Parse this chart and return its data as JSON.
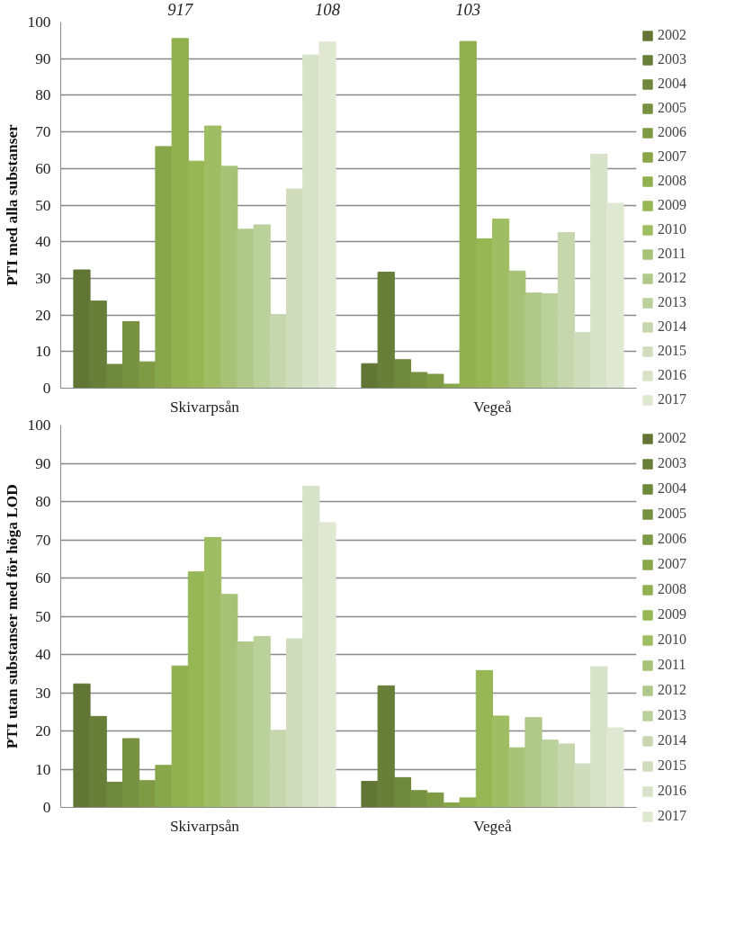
{
  "chart_data": [
    {
      "type": "bar",
      "ylabel": "PTI med alla substanser",
      "categories": [
        "Skivarpsån",
        "Vegeå"
      ],
      "ylim": [
        0,
        100
      ],
      "yticks": [
        0,
        10,
        20,
        30,
        40,
        50,
        60,
        70,
        80,
        90,
        100
      ],
      "grid": "y",
      "legend": "right",
      "annotations": [
        "917",
        "108",
        "103"
      ],
      "series": [
        {
          "name": "2002",
          "color": "#617534",
          "values": [
            32.3,
            6.7
          ]
        },
        {
          "name": "2003",
          "color": "#677f38",
          "values": [
            23.8,
            31.7
          ]
        },
        {
          "name": "2004",
          "color": "#6e883c",
          "values": [
            6.5,
            7.8
          ]
        },
        {
          "name": "2005",
          "color": "#76913f",
          "values": [
            18.2,
            4.3
          ]
        },
        {
          "name": "2006",
          "color": "#7e9a44",
          "values": [
            7.2,
            3.8
          ]
        },
        {
          "name": "2007",
          "color": "#88a64a",
          "values": [
            66,
            1.1
          ]
        },
        {
          "name": "2008",
          "color": "#91b04f",
          "values": [
            95.5,
            94.7
          ]
        },
        {
          "name": "2009",
          "color": "#97b755",
          "values": [
            62,
            40.8
          ]
        },
        {
          "name": "2010",
          "color": "#9fbd62",
          "values": [
            71.6,
            46.2
          ]
        },
        {
          "name": "2011",
          "color": "#a7c276",
          "values": [
            60.6,
            32
          ]
        },
        {
          "name": "2012",
          "color": "#b0c98a",
          "values": [
            43.4,
            26
          ]
        },
        {
          "name": "2013",
          "color": "#bbd19c",
          "values": [
            44.6,
            25.8
          ]
        },
        {
          "name": "2014",
          "color": "#c6d6ad",
          "values": [
            20.1,
            42.5
          ]
        },
        {
          "name": "2015",
          "color": "#d0ddbc",
          "values": [
            54.4,
            15.2
          ]
        },
        {
          "name": "2016",
          "color": "#d8e2c8",
          "values": [
            91,
            63.9
          ]
        },
        {
          "name": "2017",
          "color": "#e0e8d4",
          "values": [
            94.6,
            50.5
          ]
        }
      ]
    },
    {
      "type": "bar",
      "ylabel": "PTI utan substanser med för höga LOD",
      "categories": [
        "Skivarpsån",
        "Vegeå"
      ],
      "ylim": [
        0,
        100
      ],
      "yticks": [
        0,
        10,
        20,
        30,
        40,
        50,
        60,
        70,
        80,
        90,
        100
      ],
      "grid": "y",
      "legend": "right",
      "series": [
        {
          "name": "2002",
          "color": "#617534",
          "values": [
            32.3,
            6.8
          ]
        },
        {
          "name": "2003",
          "color": "#677f38",
          "values": [
            23.8,
            31.8
          ]
        },
        {
          "name": "2004",
          "color": "#6e883c",
          "values": [
            6.6,
            7.8
          ]
        },
        {
          "name": "2005",
          "color": "#76913f",
          "values": [
            18,
            4.4
          ]
        },
        {
          "name": "2006",
          "color": "#7e9a44",
          "values": [
            7,
            3.8
          ]
        },
        {
          "name": "2007",
          "color": "#88a64a",
          "values": [
            11,
            1.2
          ]
        },
        {
          "name": "2008",
          "color": "#91b04f",
          "values": [
            37,
            2.5
          ]
        },
        {
          "name": "2009",
          "color": "#97b755",
          "values": [
            61.6,
            35.8
          ]
        },
        {
          "name": "2010",
          "color": "#9fbd62",
          "values": [
            70.6,
            23.9
          ]
        },
        {
          "name": "2011",
          "color": "#a7c276",
          "values": [
            55.7,
            15.6
          ]
        },
        {
          "name": "2012",
          "color": "#b0c98a",
          "values": [
            43.3,
            23.5
          ]
        },
        {
          "name": "2013",
          "color": "#bbd19c",
          "values": [
            44.7,
            17.6
          ]
        },
        {
          "name": "2014",
          "color": "#c6d6ad",
          "values": [
            20.1,
            16.6
          ]
        },
        {
          "name": "2015",
          "color": "#d0ddbc",
          "values": [
            44.1,
            11.4
          ]
        },
        {
          "name": "2016",
          "color": "#d8e2c8",
          "values": [
            84,
            36.8
          ]
        },
        {
          "name": "2017",
          "color": "#e0e8d4",
          "values": [
            74.5,
            20.8
          ]
        }
      ]
    }
  ]
}
